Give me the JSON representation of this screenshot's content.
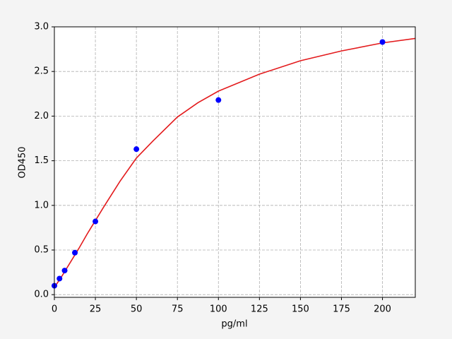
{
  "chart_data": {
    "type": "scatter",
    "x_label": "pg/ml",
    "y_label": "OD450",
    "xlim": [
      0,
      220
    ],
    "ylim": [
      -0.03,
      3.0
    ],
    "xticks": [
      0,
      25,
      50,
      75,
      100,
      125,
      150,
      175,
      200
    ],
    "yticks": [
      {
        "value": 0,
        "label": "0.0"
      },
      0.5,
      {
        "value": 1,
        "label": "1.0"
      },
      1.5,
      {
        "value": 2,
        "label": "2.0"
      },
      2.5,
      {
        "value": 3,
        "label": "3.0"
      }
    ],
    "grid": true,
    "series": [
      {
        "type": "line",
        "color": "#e31a1c",
        "x": [
          0,
          5,
          10,
          15,
          20,
          25,
          30,
          40,
          50,
          60,
          75,
          87.5,
          100,
          125,
          150,
          175,
          200,
          220
        ],
        "values": [
          0.08,
          0.22,
          0.37,
          0.52,
          0.68,
          0.83,
          0.98,
          1.27,
          1.53,
          1.72,
          1.99,
          2.15,
          2.28,
          2.47,
          2.62,
          2.73,
          2.82,
          2.87
        ]
      },
      {
        "type": "scatter",
        "color": "#0000ff",
        "x": [
          0,
          3.125,
          6.25,
          12.5,
          25,
          50,
          100,
          200
        ],
        "values": [
          0.1,
          0.18,
          0.27,
          0.47,
          0.82,
          1.63,
          2.18,
          2.83
        ]
      }
    ]
  }
}
